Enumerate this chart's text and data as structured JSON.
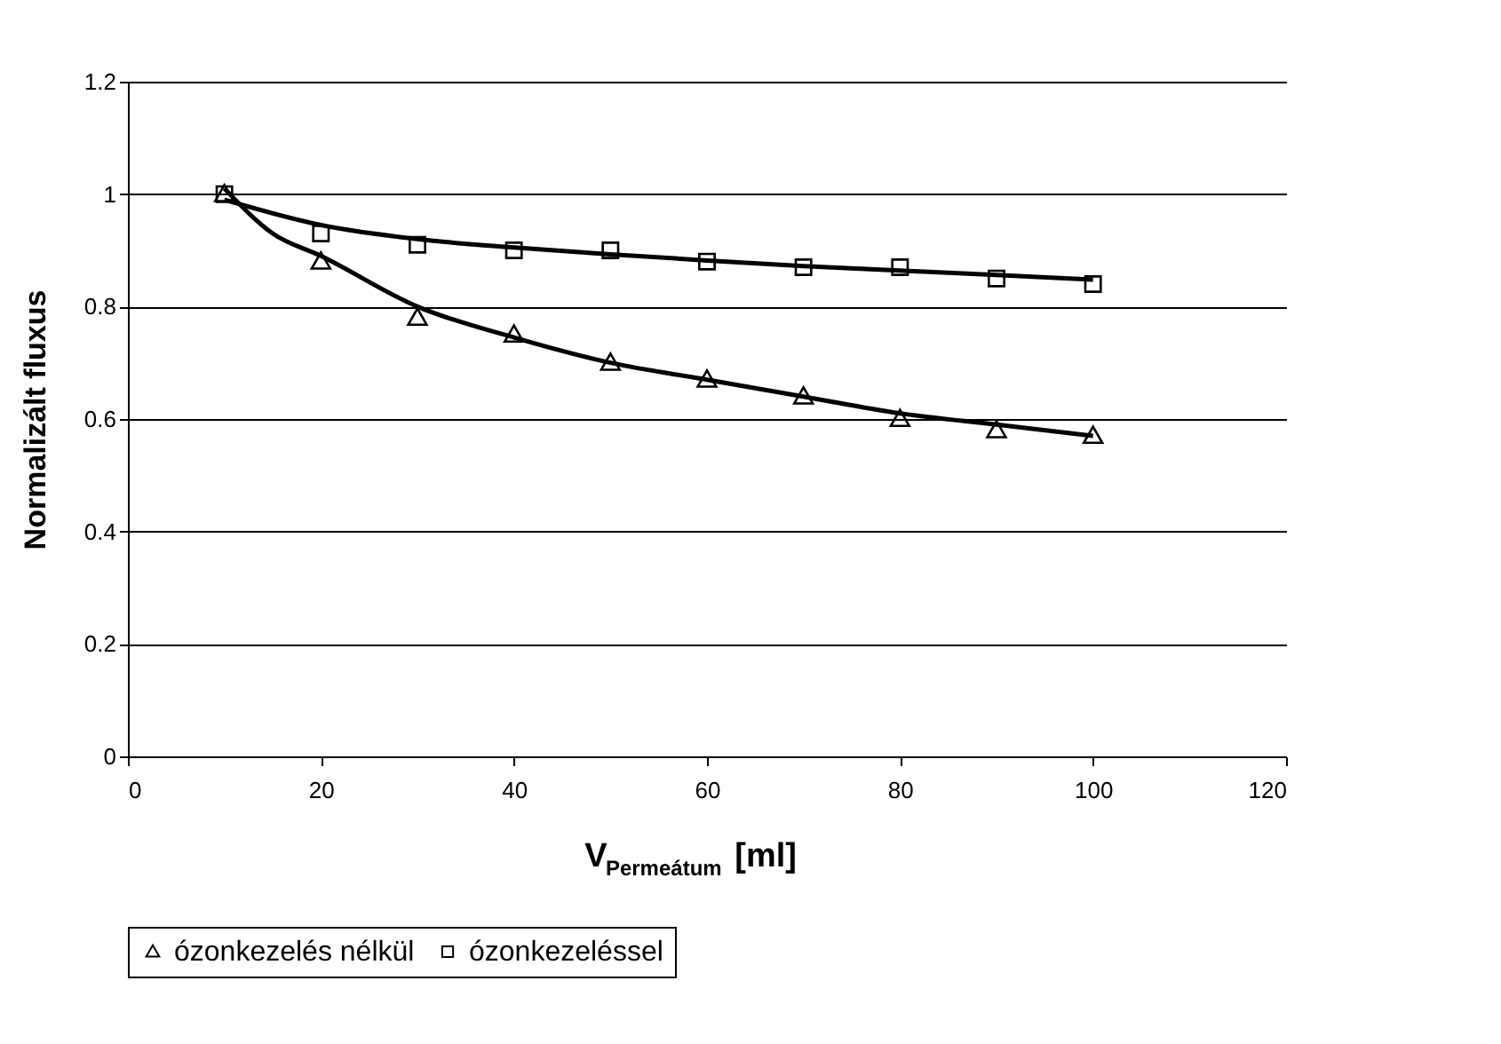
{
  "chart_data": {
    "type": "scatter",
    "xlabel": "V$_{Permeátum}$ [ml]",
    "ylabel": "Normalizált fluxus",
    "xlim": [
      0,
      120
    ],
    "xticks": [
      0,
      20,
      40,
      60,
      80,
      100,
      120
    ],
    "ylim": [
      0,
      1.2
    ],
    "yticks": [
      0,
      0.2,
      0.4,
      0.6,
      0.8,
      1,
      1.2
    ],
    "grid": "y",
    "legend": "bottom",
    "series": [
      {
        "name": "ózonkezelés nélkül",
        "color": "#000000",
        "marker": "triangle",
        "x": [
          10,
          20,
          30,
          40,
          50,
          60,
          70,
          80,
          90,
          100
        ],
        "values": [
          1.0,
          0.88,
          0.78,
          0.75,
          0.7,
          0.67,
          0.64,
          0.6,
          0.58,
          0.57
        ]
      },
      {
        "name": "ózonkezeléssel",
        "color": "#000000",
        "marker": "square",
        "x": [
          10,
          20,
          30,
          40,
          50,
          60,
          70,
          80,
          90,
          100
        ],
        "values": [
          1.0,
          0.93,
          0.91,
          0.9,
          0.9,
          0.88,
          0.87,
          0.87,
          0.85,
          0.84
        ]
      },
      {
        "type": "line",
        "color": "#000000",
        "x": [
          10,
          15,
          20,
          30,
          40,
          50,
          60,
          70,
          80,
          90,
          100
        ],
        "values": [
          1.01,
          0.93,
          0.89,
          0.8,
          0.745,
          0.7,
          0.67,
          0.64,
          0.61,
          0.59,
          0.57
        ]
      },
      {
        "type": "line",
        "color": "#000000",
        "x": [
          10,
          20,
          30,
          40,
          50,
          60,
          70,
          80,
          90,
          100
        ],
        "values": [
          0.99,
          0.945,
          0.92,
          0.905,
          0.893,
          0.882,
          0.872,
          0.864,
          0.856,
          0.848
        ]
      }
    ]
  }
}
